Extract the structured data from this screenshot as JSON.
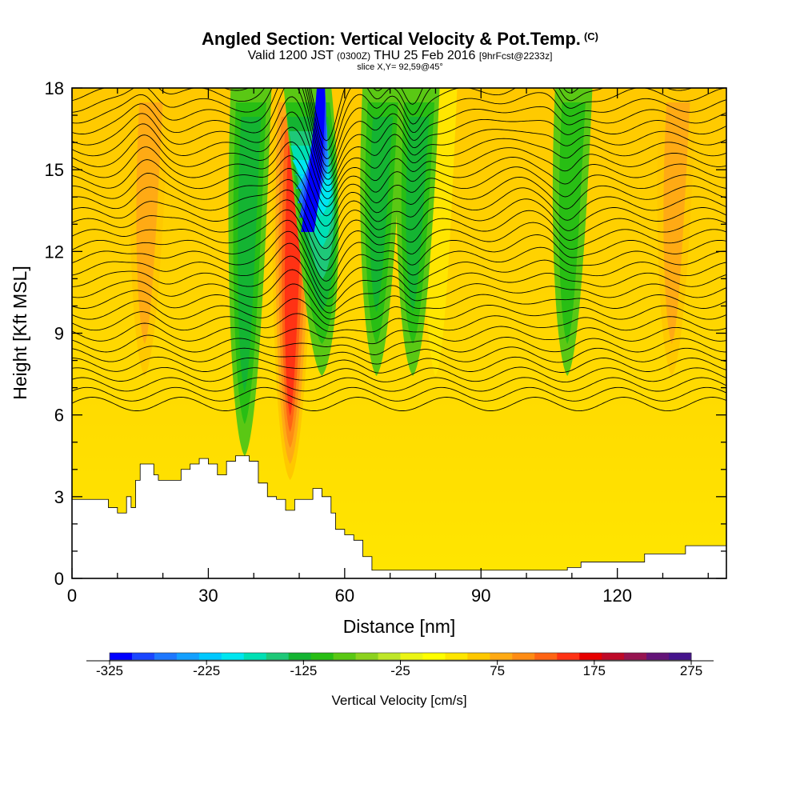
{
  "header": {
    "title": "Angled Section: Vertical Velocity & Pot.Temp.",
    "title_unit": "(C)",
    "valid_prefix": "Valid 1200 JST",
    "valid_utc": "(0300Z)",
    "valid_date": "THU 25 Feb 2016",
    "forecast": "[9hrFcst@2233z]",
    "slice": "slice X,Y= 92,59@45°"
  },
  "chart_data": {
    "type": "heatmap",
    "title": "Angled Section: Vertical Velocity & Pot.Temp.",
    "xlabel": "Distance [nm]",
    "ylabel": "Height [Kft MSL]",
    "xlim": [
      0,
      144
    ],
    "ylim": [
      0,
      18
    ],
    "x_ticks": [
      0,
      30,
      60,
      90,
      120
    ],
    "y_ticks": [
      0,
      3,
      6,
      9,
      12,
      15,
      18
    ],
    "colorbar": {
      "title": "Vertical Velocity [cm/s]",
      "min": -325,
      "max": 275,
      "step": 25,
      "labels": [
        -325,
        -225,
        -125,
        -25,
        75,
        175,
        275
      ],
      "colors": [
        "#0000ff",
        "#1a46ff",
        "#1e78ff",
        "#14a0ff",
        "#00c8ff",
        "#00e6f0",
        "#00e0b4",
        "#1ec878",
        "#14b432",
        "#28be14",
        "#5ac814",
        "#8cd21e",
        "#bee628",
        "#ebf514",
        "#ffff00",
        "#ffe600",
        "#ffc800",
        "#ffaa14",
        "#ff8c14",
        "#ff6414",
        "#ff3214",
        "#e60000",
        "#be0a28",
        "#961450",
        "#641478",
        "#46148c"
      ]
    },
    "updraft_cores": [
      {
        "x": 16,
        "peak": 110
      },
      {
        "x": 48,
        "peak": 175
      },
      {
        "x": 80,
        "peak": 60
      },
      {
        "x": 132,
        "peak": 110
      }
    ],
    "downdraft_cores": [
      {
        "x": 38,
        "peak": -125
      },
      {
        "x": 55,
        "peak": -325
      },
      {
        "x": 67,
        "peak": -125
      },
      {
        "x": 75,
        "peak": -125
      },
      {
        "x": 109,
        "peak": -100
      }
    ],
    "terrain_kft": [
      [
        0,
        2.9
      ],
      [
        5,
        2.9
      ],
      [
        8,
        2.6
      ],
      [
        10,
        2.4
      ],
      [
        12,
        3.0
      ],
      [
        13,
        2.6
      ],
      [
        14,
        3.6
      ],
      [
        15,
        4.2
      ],
      [
        18,
        3.8
      ],
      [
        19,
        3.6
      ],
      [
        23,
        3.6
      ],
      [
        24,
        4.0
      ],
      [
        26,
        4.2
      ],
      [
        28,
        4.4
      ],
      [
        30,
        4.2
      ],
      [
        32,
        3.8
      ],
      [
        33,
        3.8
      ],
      [
        34,
        4.3
      ],
      [
        36,
        4.5
      ],
      [
        39,
        4.3
      ],
      [
        41,
        3.5
      ],
      [
        43,
        3.0
      ],
      [
        45,
        2.9
      ],
      [
        47,
        2.5
      ],
      [
        49,
        2.9
      ],
      [
        53,
        3.3
      ],
      [
        55,
        3.0
      ],
      [
        57,
        2.4
      ],
      [
        58,
        1.8
      ],
      [
        60,
        1.6
      ],
      [
        62,
        1.4
      ],
      [
        64,
        0.8
      ],
      [
        66,
        0.3
      ],
      [
        105,
        0.3
      ],
      [
        109,
        0.4
      ],
      [
        112,
        0.6
      ],
      [
        126,
        0.9
      ],
      [
        135,
        1.2
      ],
      [
        144,
        1.3
      ]
    ],
    "isentropes": {
      "count": 32,
      "base_kft": 6.4,
      "spacing_kft": 0.36,
      "label_interval": 4
    }
  }
}
